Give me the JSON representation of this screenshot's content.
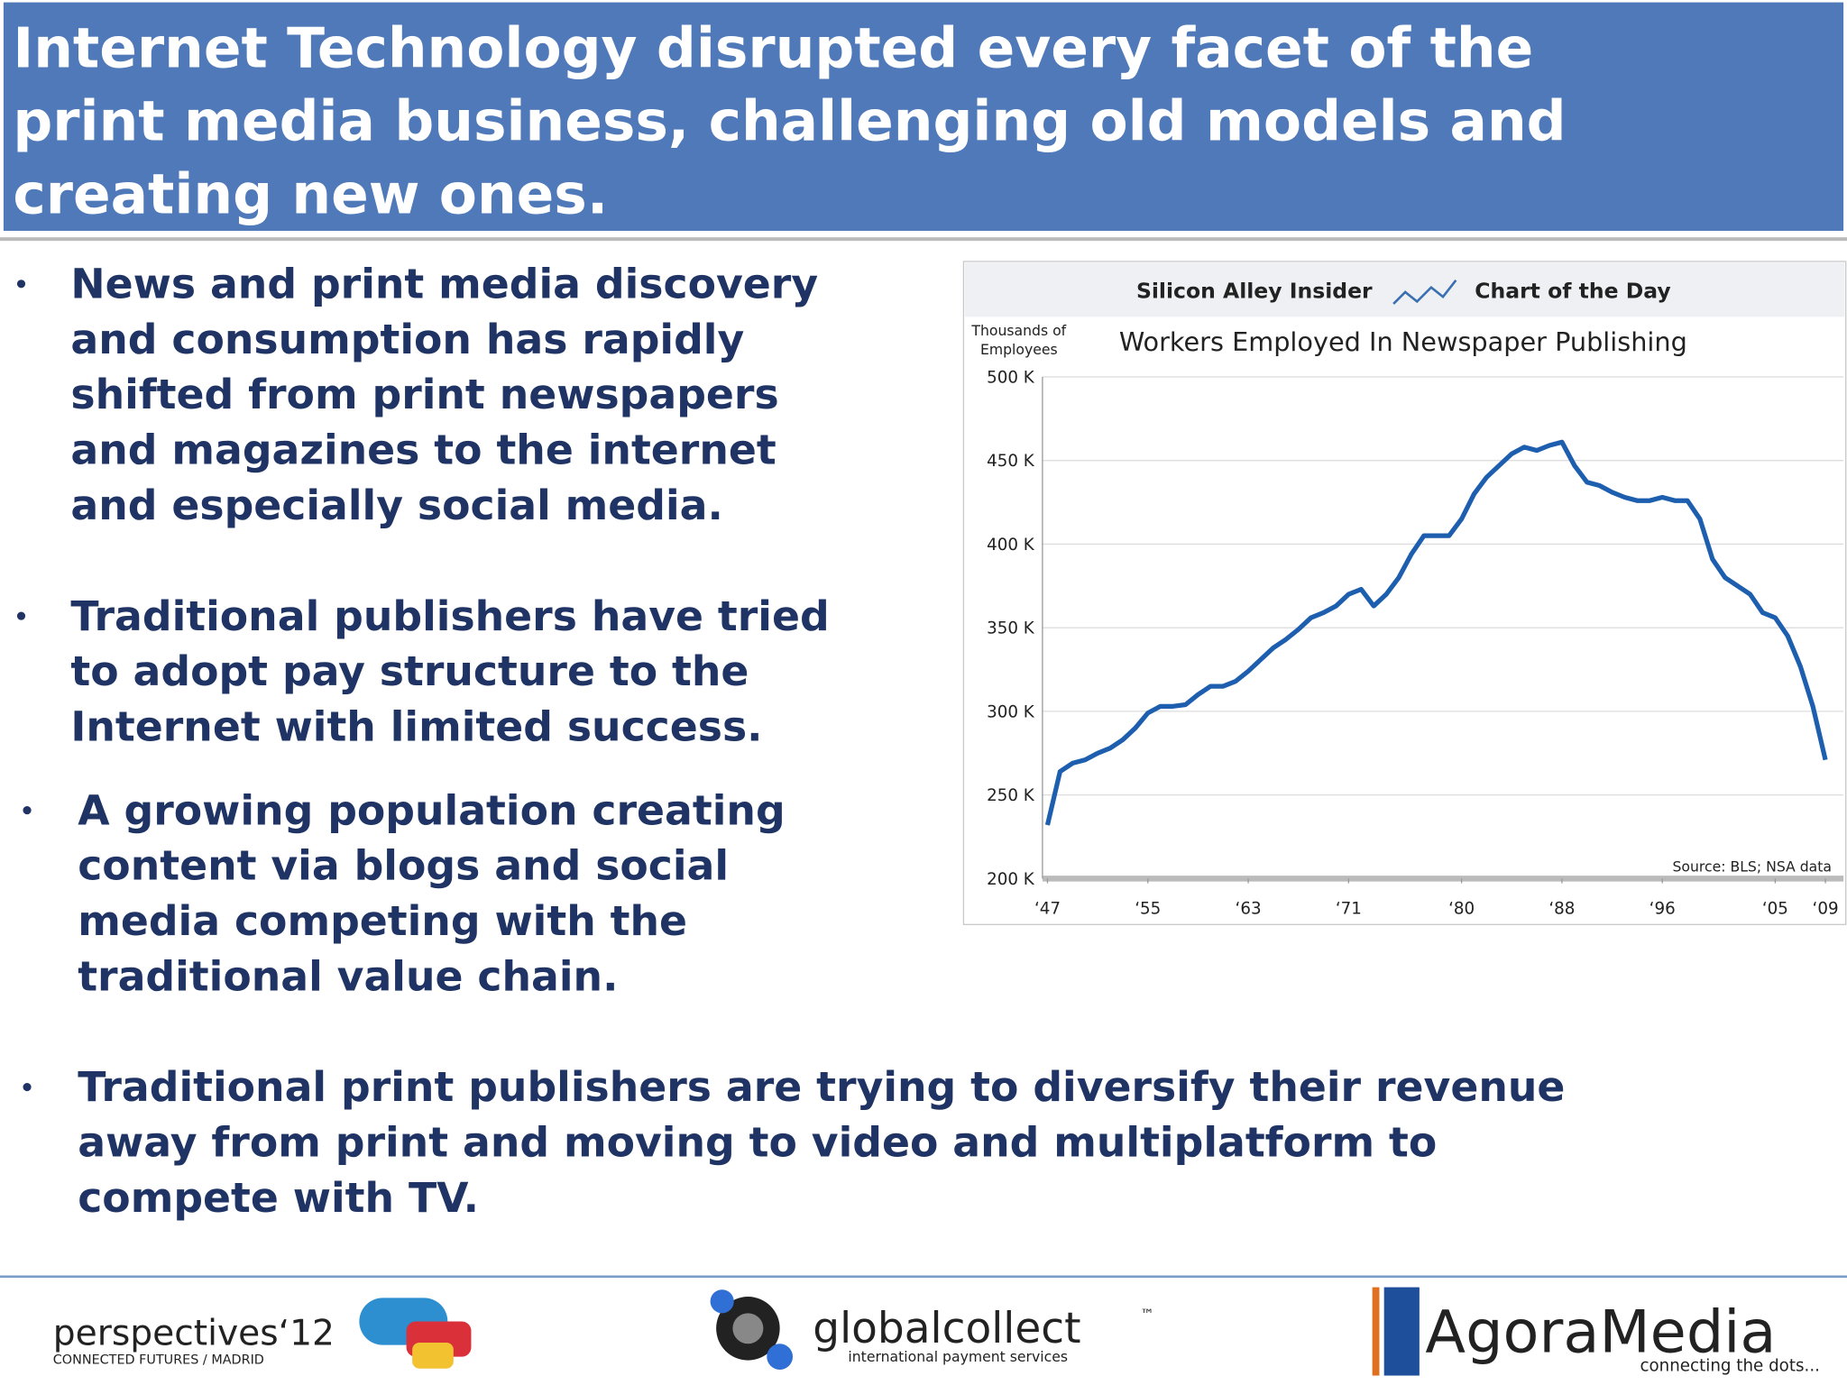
{
  "header": {
    "title_lines": [
      "Internet Technology disrupted every facet of the",
      "print media business, challenging old models and",
      "creating new ones."
    ]
  },
  "bullets": [
    {
      "lines": [
        "News and print media discovery",
        "and consumption has rapidly",
        "shifted from print newspapers",
        "and magazines to the internet",
        "and especially social media."
      ]
    },
    {
      "lines": [
        "Traditional publishers have tried",
        "to adopt pay structure to the",
        "Internet with limited success."
      ]
    },
    {
      "lines": [
        "A growing population creating",
        "content via blogs and social",
        "media competing with the",
        "traditional value chain."
      ]
    },
    {
      "lines": [
        "Traditional print publishers are trying to diversify their revenue",
        "away from print and moving to video and multiplatform to",
        "compete with TV."
      ]
    }
  ],
  "chart_data": {
    "type": "line",
    "brand": "Silicon Alley Insider",
    "badge": "Chart of the Day",
    "title": "Workers Employed In Newspaper Publishing",
    "y_label_lines": [
      "Thousands of",
      "Employees"
    ],
    "source": "Source: BLS; NSA data",
    "color": "#1d5fae",
    "x": [
      1947,
      1948,
      1949,
      1950,
      1951,
      1952,
      1953,
      1954,
      1955,
      1956,
      1957,
      1958,
      1959,
      1960,
      1961,
      1962,
      1963,
      1964,
      1965,
      1966,
      1967,
      1968,
      1969,
      1970,
      1971,
      1972,
      1973,
      1974,
      1975,
      1976,
      1977,
      1978,
      1979,
      1980,
      1981,
      1982,
      1983,
      1984,
      1985,
      1986,
      1987,
      1988,
      1989,
      1990,
      1991,
      1992,
      1993,
      1994,
      1995,
      1996,
      1997,
      1998,
      1999,
      2000,
      2001,
      2002,
      2003,
      2004,
      2005,
      2006,
      2007,
      2008,
      2009
    ],
    "values": [
      232,
      264,
      269,
      271,
      275,
      278,
      283,
      290,
      299,
      303,
      303,
      304,
      310,
      315,
      315,
      318,
      324,
      331,
      338,
      343,
      349,
      356,
      359,
      363,
      370,
      373,
      363,
      370,
      380,
      394,
      405,
      405,
      405,
      415,
      430,
      440,
      447,
      454,
      458,
      456,
      459,
      461,
      447,
      437,
      435,
      431,
      428,
      426,
      426,
      428,
      426,
      426,
      415,
      391,
      380,
      375,
      370,
      359,
      356,
      345,
      327,
      303,
      271
    ],
    "xlim": [
      1946.6,
      2009.5
    ],
    "ylim": [
      200,
      500
    ],
    "xticks": [
      {
        "value": 1947,
        "label": "‘47"
      },
      {
        "value": 1955,
        "label": "‘55"
      },
      {
        "value": 1963,
        "label": "‘63"
      },
      {
        "value": 1971,
        "label": "‘71"
      },
      {
        "value": 1980,
        "label": "‘80"
      },
      {
        "value": 1988,
        "label": "‘88"
      },
      {
        "value": 1996,
        "label": "‘96"
      },
      {
        "value": 2005,
        "label": "‘05"
      },
      {
        "value": 2009,
        "label": "‘09"
      }
    ],
    "yticks": [
      {
        "value": 200,
        "label": "200 K"
      },
      {
        "value": 250,
        "label": "250 K"
      },
      {
        "value": 300,
        "label": "300 K"
      },
      {
        "value": 350,
        "label": "350 K"
      },
      {
        "value": 400,
        "label": "400 K"
      },
      {
        "value": 450,
        "label": "450 K"
      },
      {
        "value": 500,
        "label": "500 K"
      }
    ],
    "grid": true
  },
  "footer": {
    "logo1": "perspectives‘12",
    "logo1_sub": "CONNECTED FUTURES / MADRID",
    "logo2": "globalcollect",
    "logo2_tm": "™",
    "logo2_sub": "international payment services",
    "logo3": "AgoraMedia",
    "logo3_sub": "connecting the dots..."
  }
}
